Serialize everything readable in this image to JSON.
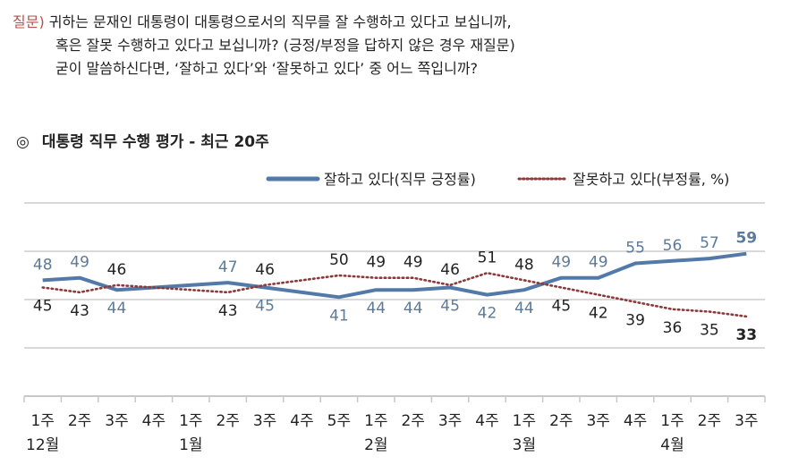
{
  "question": {
    "label": "질문)",
    "lines": [
      "귀하는 문재인 대통령이 대통령으로서의 직무를 잘 수행하고 있다고 보십니까,",
      "혹은 잘못 수행하고 있다고 보십니까? (긍정/부정을 답하지 않은 경우 재질문)",
      "굳이 말씀하신다면, ‘잘하고 있다’와 ‘잘못하고 있다’ 중 어느 쪽입니까?"
    ]
  },
  "chart_data": {
    "type": "line",
    "title_mark": "◎",
    "title": "대통령 직무 수행 평가 - 최근 20주",
    "categories": [
      "1주",
      "2주",
      "3주",
      "4주",
      "1주",
      "2주",
      "3주",
      "4주",
      "5주",
      "1주",
      "2주",
      "3주",
      "4주",
      "1주",
      "2주",
      "3주",
      "4주",
      "1주",
      "2주",
      "3주"
    ],
    "months": [
      {
        "label": "12월",
        "index": 0
      },
      {
        "label": "1월",
        "index": 4
      },
      {
        "label": "2월",
        "index": 9
      },
      {
        "label": "3월",
        "index": 13
      },
      {
        "label": "4월",
        "index": 17
      }
    ],
    "series": [
      {
        "name": "잘하고 있다(직무 긍정률)",
        "color": "#5279a8",
        "style": "solid",
        "values": [
          48,
          49,
          44,
          null,
          null,
          47,
          45,
          null,
          41,
          44,
          44,
          45,
          42,
          44,
          49,
          49,
          55,
          56,
          57,
          59
        ]
      },
      {
        "name": "잘못하고 있다(부정률, %)",
        "color": "#8b3a3a",
        "style": "dotted",
        "values": [
          45,
          43,
          46,
          null,
          null,
          43,
          46,
          null,
          50,
          49,
          49,
          46,
          51,
          48,
          45,
          42,
          39,
          36,
          35,
          33
        ]
      }
    ],
    "ylim": [
      0,
      80
    ],
    "grid": true,
    "legend": "top-right",
    "label_colors": {
      "positive": "#5c7a99",
      "negative": "#222222"
    }
  }
}
